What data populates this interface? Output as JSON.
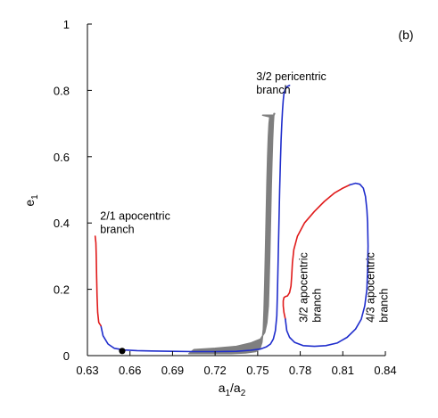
{
  "chart_data": {
    "type": "line",
    "panel_label": "(b)",
    "xlabel": {
      "base": "a",
      "sub1": "1",
      "sep": "/a",
      "sub2": "2"
    },
    "ylabel": {
      "base": "e",
      "sub": "1"
    },
    "xlim": [
      0.63,
      0.84
    ],
    "ylim": [
      0,
      1
    ],
    "x_ticks": [
      0.63,
      0.66,
      0.69,
      0.72,
      0.75,
      0.78,
      0.81,
      0.84
    ],
    "x_tick_labels": [
      "0.63",
      "0.66",
      "0.69",
      "0.72",
      "0.75",
      "0.78",
      "0.81",
      "0.84"
    ],
    "y_ticks": [
      0,
      0.2,
      0.4,
      0.6,
      0.8,
      1
    ],
    "y_tick_labels": [
      "0",
      "0.2",
      "0.4",
      "0.6",
      "0.8",
      "1"
    ],
    "colors": {
      "stable": "#1f2dcc",
      "unstable": "#e01b1b",
      "orbit": "#7f7f7f",
      "point": "#000000"
    },
    "annotations": [
      {
        "id": "a21",
        "lines": [
          "2/1 apocentric",
          "branch"
        ],
        "x": 0.639,
        "y": 0.41,
        "rotate": 0
      },
      {
        "id": "p32",
        "lines": [
          "3/2 pericentric",
          "branch"
        ],
        "x": 0.749,
        "y": 0.83,
        "rotate": 0
      },
      {
        "id": "a32",
        "lines": [
          "3/2 apocentric",
          "branch"
        ],
        "x": 0.785,
        "y": 0.1,
        "rotate": -90
      },
      {
        "id": "a43",
        "lines": [
          "4/3 apocentric",
          "branch"
        ],
        "x": 0.832,
        "y": 0.1,
        "rotate": -90
      }
    ],
    "series": [
      {
        "id": "low-branch-stable",
        "color_key": "stable",
        "x": [
          0.6395,
          0.641,
          0.6445,
          0.649,
          0.656,
          0.665,
          0.675,
          0.69,
          0.705,
          0.72,
          0.735,
          0.745,
          0.752,
          0.756,
          0.759,
          0.761,
          0.7625,
          0.7635,
          0.764,
          0.7645,
          0.765,
          0.7655,
          0.766,
          0.7665,
          0.767,
          0.7675,
          0.768,
          0.7685,
          0.7695,
          0.771,
          0.7725
        ],
        "y": [
          0.09,
          0.06,
          0.035,
          0.022,
          0.017,
          0.015,
          0.014,
          0.013,
          0.012,
          0.012,
          0.013,
          0.016,
          0.02,
          0.026,
          0.035,
          0.05,
          0.075,
          0.12,
          0.2,
          0.3,
          0.4,
          0.5,
          0.58,
          0.65,
          0.7,
          0.74,
          0.77,
          0.79,
          0.805,
          0.812,
          0.815
        ]
      },
      {
        "id": "low-branch-unstable",
        "color_key": "unstable",
        "x": [
          0.6355,
          0.636,
          0.6362,
          0.6365,
          0.6368,
          0.6372,
          0.638,
          0.6395
        ],
        "y": [
          0.36,
          0.34,
          0.3,
          0.24,
          0.18,
          0.13,
          0.1,
          0.09
        ]
      },
      {
        "id": "loop-unstable",
        "color_key": "unstable",
        "x": [
          0.7695,
          0.7685,
          0.768,
          0.768,
          0.7685,
          0.7695,
          0.771,
          0.7725,
          0.7735,
          0.774,
          0.7745,
          0.7755,
          0.778,
          0.783,
          0.79,
          0.797,
          0.804,
          0.81,
          0.815
        ],
        "y": [
          0.11,
          0.13,
          0.15,
          0.165,
          0.175,
          0.178,
          0.18,
          0.19,
          0.21,
          0.24,
          0.28,
          0.32,
          0.36,
          0.4,
          0.435,
          0.465,
          0.49,
          0.505,
          0.515
        ]
      },
      {
        "id": "loop-stable",
        "color_key": "stable",
        "x": [
          0.815,
          0.819,
          0.822,
          0.8245,
          0.826,
          0.827,
          0.8275,
          0.8278,
          0.8275,
          0.827,
          0.8255,
          0.823,
          0.819,
          0.813,
          0.806,
          0.798,
          0.79,
          0.782,
          0.776,
          0.7725,
          0.7705,
          0.7695
        ],
        "y": [
          0.515,
          0.52,
          0.517,
          0.505,
          0.48,
          0.44,
          0.4,
          0.33,
          0.26,
          0.2,
          0.15,
          0.11,
          0.08,
          0.055,
          0.038,
          0.03,
          0.028,
          0.03,
          0.04,
          0.055,
          0.075,
          0.11
        ]
      }
    ],
    "orbit_band": {
      "x": [
        0.705,
        0.72,
        0.735,
        0.745,
        0.752,
        0.755,
        0.7565,
        0.7575,
        0.758,
        0.7585,
        0.759,
        0.7595,
        0.76,
        0.7605,
        0.761,
        0.7615,
        0.762
      ],
      "y_low": [
        0.006,
        0.006,
        0.006,
        0.008,
        0.012,
        0.02,
        0.04,
        0.08,
        0.14,
        0.22,
        0.32,
        0.42,
        0.52,
        0.6,
        0.66,
        0.7,
        0.72
      ],
      "y_high": [
        0.018,
        0.022,
        0.028,
        0.038,
        0.05,
        0.07,
        0.1,
        0.15,
        0.22,
        0.3,
        0.4,
        0.5,
        0.58,
        0.65,
        0.7,
        0.73,
        0.73
      ],
      "top_x": [
        0.7535,
        0.7615
      ],
      "top_y": 0.725
    },
    "marker": {
      "x": 0.6545,
      "y": 0.014
    }
  }
}
